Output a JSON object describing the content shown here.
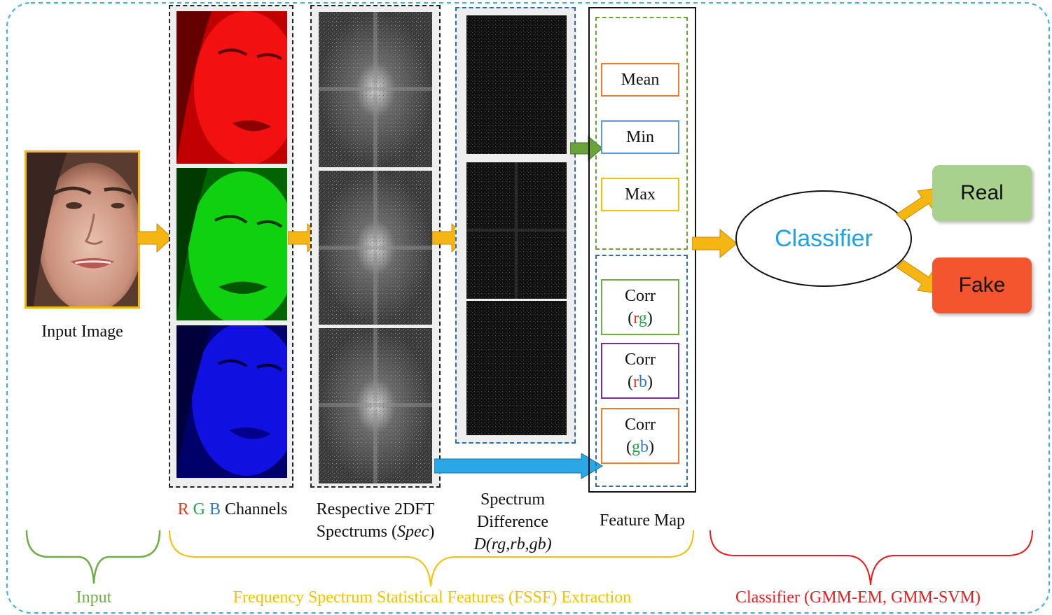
{
  "input_label": "Input Image",
  "channels_label": {
    "r": "R",
    "g": "G",
    "b": "B",
    "rest": " Channels"
  },
  "spectrum_label": {
    "line1": "Respective 2DFT",
    "line2_prefix": "Spectrums (",
    "line2_italic": "Spec",
    "line2_suffix": ")"
  },
  "difference_label": {
    "line1": "Spectrum",
    "line2": "Difference",
    "line3_italic_a": "D",
    "line3_rest": "(rg,rb,gb)"
  },
  "feature_map_label": "Feature Map",
  "features": {
    "mean": "Mean",
    "min": "Min",
    "max": "Max",
    "corr_word": "Corr",
    "corr_rg": {
      "a": "r",
      "b": "g"
    },
    "corr_rb": {
      "a": "r",
      "b": "b"
    },
    "corr_gb": {
      "a": "g",
      "b": "b"
    }
  },
  "classifier_label": "Classifier",
  "outputs": {
    "real": "Real",
    "fake": "Fake"
  },
  "sections": {
    "input": "Input",
    "fssf": "Frequency Spectrum Statistical Features (FSSF) Extraction",
    "classifier": "Classifier (GMM-EM, GMM-SVM)"
  },
  "colors": {
    "outer_border": "#33b3e6",
    "arrow_orange": "#f5b614",
    "arrow_green": "#6aa33a",
    "arrow_blue": "#2aa7e6",
    "input_text": "#70ad47",
    "fssf_text": "#f5c000",
    "classifier_text": "#e51d1d",
    "classifier_word": "#1aa3e8",
    "real_box": "#a8d18d",
    "fake_box": "#f4542e",
    "r": "#e5391e",
    "g": "#1ea34a",
    "b": "#2e7bc4"
  }
}
